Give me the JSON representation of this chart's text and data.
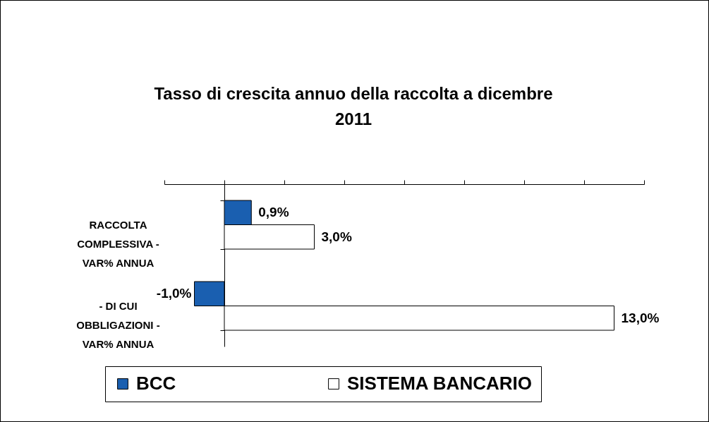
{
  "chart_data": {
    "type": "bar",
    "orientation": "horizontal",
    "title": "Tasso di crescita annuo della raccolta a dicembre 2011",
    "categories": [
      "RACCOLTA COMPLESSIVA - VAR% ANNUA",
      "- DI CUI OBBLIGAZIONI - VAR% ANNUA"
    ],
    "series": [
      {
        "name": "BCC",
        "color": "#1a5fb0",
        "values": [
          0.9,
          -1.0
        ],
        "value_labels": [
          "0,9%",
          "-1,0%"
        ]
      },
      {
        "name": "SISTEMA BANCARIO",
        "color": "#ffffff",
        "values": [
          3.0,
          13.0
        ],
        "value_labels": [
          "3,0%",
          "13,0%"
        ]
      }
    ],
    "xlim": [
      -2,
      14
    ],
    "xticks": [
      {
        "value": -2,
        "label": null
      },
      {
        "value": 0,
        "label": null
      },
      {
        "value": 2,
        "label": null
      },
      {
        "value": 4,
        "label": null
      },
      {
        "value": 6,
        "label": null
      },
      {
        "value": 8,
        "label": null
      },
      {
        "value": 10,
        "label": null
      },
      {
        "value": 12,
        "label": null
      },
      {
        "value": 14,
        "label": null
      }
    ],
    "tick_labels": "y",
    "grid": false,
    "legend": "bottom"
  }
}
